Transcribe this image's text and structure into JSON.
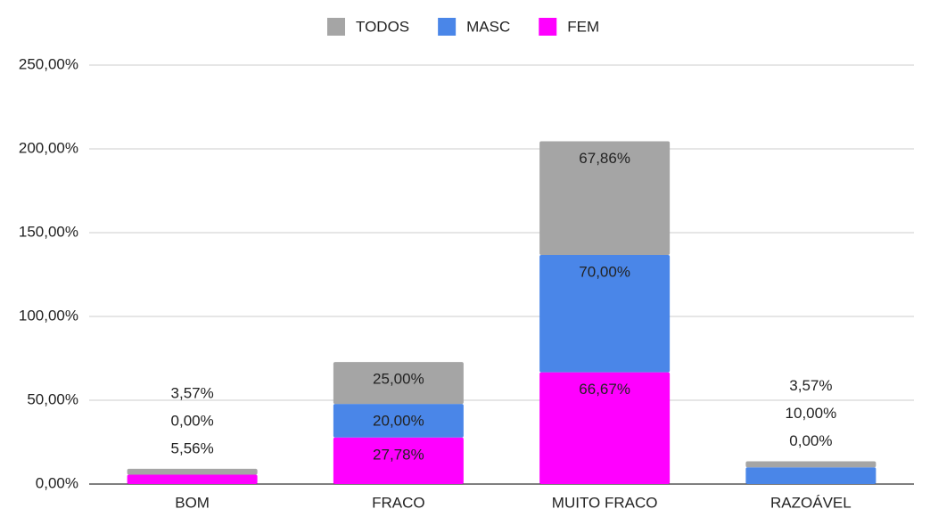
{
  "chart_data": {
    "type": "stacked_bar",
    "categories": [
      "BOM",
      "FRACO",
      "MUITO FRACO",
      "RAZOÁVEL"
    ],
    "series": [
      {
        "name": "FEM",
        "color": "#ff00ff",
        "values": [
          5.56,
          27.78,
          66.67,
          0
        ],
        "value_labels": [
          "5,56%",
          "27,78%",
          "66,67%",
          "0,00%"
        ]
      },
      {
        "name": "MASC",
        "color": "#4a86e8",
        "values": [
          0,
          20,
          70,
          10
        ],
        "value_labels": [
          "0,00%",
          "20,00%",
          "70,00%",
          "10,00%"
        ]
      },
      {
        "name": "TODOS",
        "color": "#a5a5a5",
        "values": [
          3.57,
          25,
          67.86,
          3.57
        ],
        "value_labels": [
          "3,57%",
          "25,00%",
          "67,86%",
          "3,57%"
        ]
      }
    ],
    "legend_order": [
      "TODOS",
      "MASC",
      "FEM"
    ],
    "ylim": [
      0,
      250
    ],
    "yticks": [
      {
        "value": 0,
        "label": "0,00%"
      },
      {
        "value": 50,
        "label": "50,00%"
      },
      {
        "value": 100,
        "label": "100,00%"
      },
      {
        "value": 150,
        "label": "150,00%"
      },
      {
        "value": 200,
        "label": "200,00%"
      },
      {
        "value": 250,
        "label": "250,00%"
      }
    ],
    "grid": true,
    "legend": "top"
  }
}
